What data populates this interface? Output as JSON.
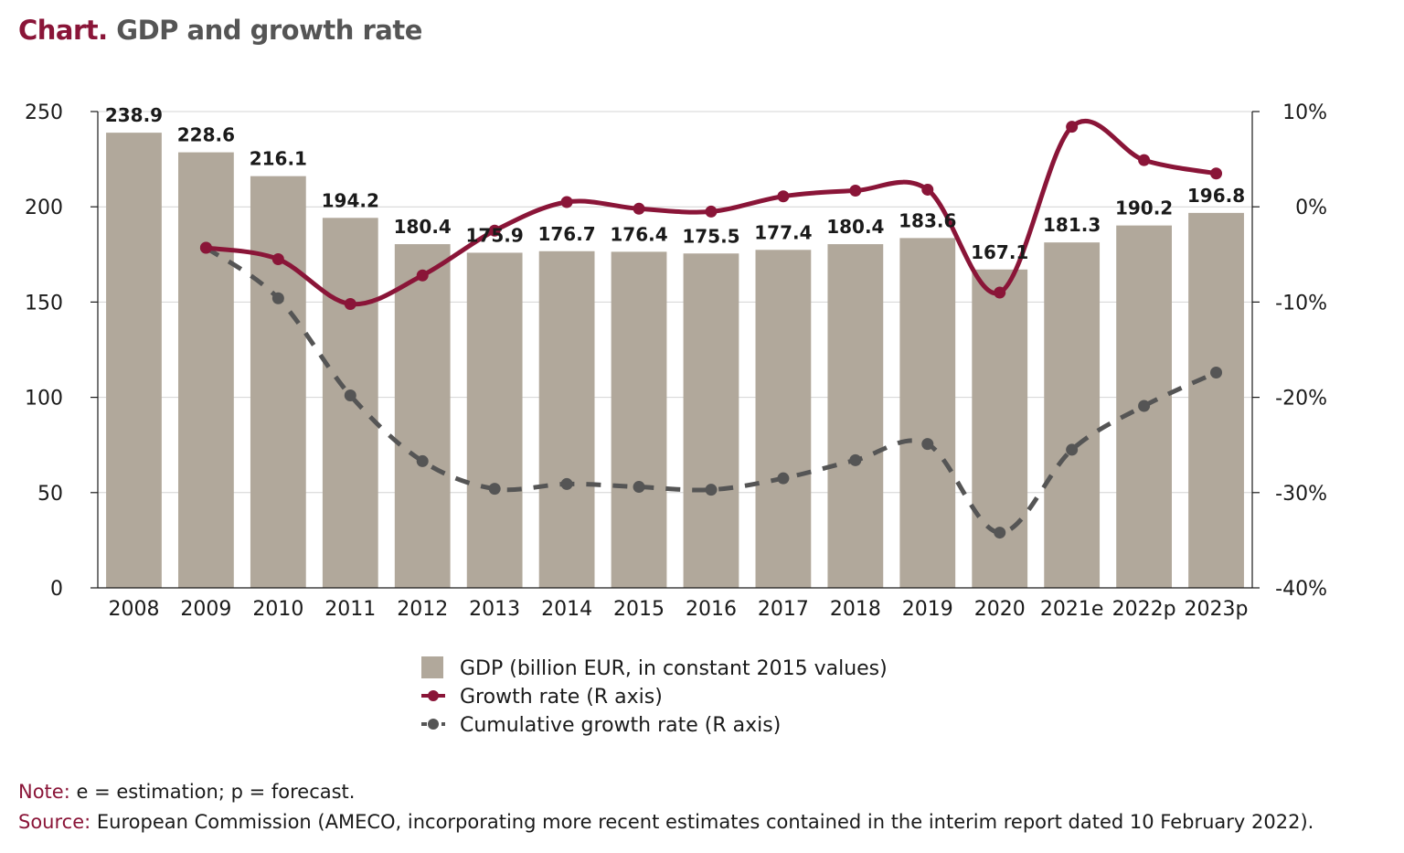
{
  "header": {
    "prefix": "Chart.",
    "title": "GDP and growth rate"
  },
  "notes": {
    "note_label": "Note:",
    "note_text": "e = estimation; p = forecast.",
    "source_label": "Source:",
    "source_text": "European Commission (AMECO, incorporating more recent estimates contained in the interim report dated 10 February 2022)."
  },
  "colors": {
    "bar": "#b1a89b",
    "growth": "#8a1538",
    "cumulative": "#555555",
    "grid": "#d4d4d4",
    "axis": "#1a1a1a"
  },
  "chart_data": {
    "type": "bar",
    "title": "GDP and growth rate",
    "categories": [
      "2008",
      "2009",
      "2010",
      "2011",
      "2012",
      "2013",
      "2014",
      "2015",
      "2016",
      "2017",
      "2018",
      "2019",
      "2020",
      "2021e",
      "2022p",
      "2023p"
    ],
    "left_axis": {
      "min": 0,
      "max": 250,
      "ticks": [
        0,
        50,
        100,
        150,
        200,
        250
      ],
      "tick_labels": [
        "0",
        "50",
        "100",
        "150",
        "200",
        "250"
      ]
    },
    "right_axis": {
      "min": -40,
      "max": 10,
      "ticks": [
        -40,
        -30,
        -20,
        -10,
        0,
        10
      ],
      "tick_labels": [
        "-40%",
        "-30%",
        "-20%",
        "-10%",
        "0%",
        "10%"
      ]
    },
    "grid": true,
    "legend_position": "bottom-center",
    "series": [
      {
        "name": "GDP (billion EUR, in constant 2015 values)",
        "type": "bar",
        "axis": "left",
        "values": [
          238.9,
          228.6,
          216.1,
          194.2,
          180.4,
          175.9,
          176.7,
          176.4,
          175.5,
          177.4,
          180.4,
          183.6,
          167.1,
          181.3,
          190.2,
          196.8
        ],
        "labels": [
          "238.9",
          "228.6",
          "216.1",
          "194.2",
          "180.4",
          "175.9",
          "176.7",
          "176.4",
          "175.5",
          "177.4",
          "180.4",
          "183.6",
          "167.1",
          "181.3",
          "190.2",
          "196.8"
        ]
      },
      {
        "name": "Growth rate (R axis)",
        "type": "line",
        "axis": "right",
        "values": [
          null,
          -4.3,
          -5.5,
          -10.2,
          -7.2,
          -2.5,
          0.5,
          -0.2,
          -0.5,
          1.1,
          1.7,
          1.8,
          -9.0,
          8.4,
          4.9,
          3.5
        ]
      },
      {
        "name": "Cumulative growth rate (R axis)",
        "type": "line",
        "dashed": true,
        "axis": "right",
        "values": [
          null,
          -4.3,
          -9.6,
          -19.8,
          -26.7,
          -29.6,
          -29.1,
          -29.4,
          -29.7,
          -28.5,
          -26.6,
          -24.9,
          -34.2,
          -25.5,
          -20.9,
          -17.4
        ]
      }
    ]
  }
}
